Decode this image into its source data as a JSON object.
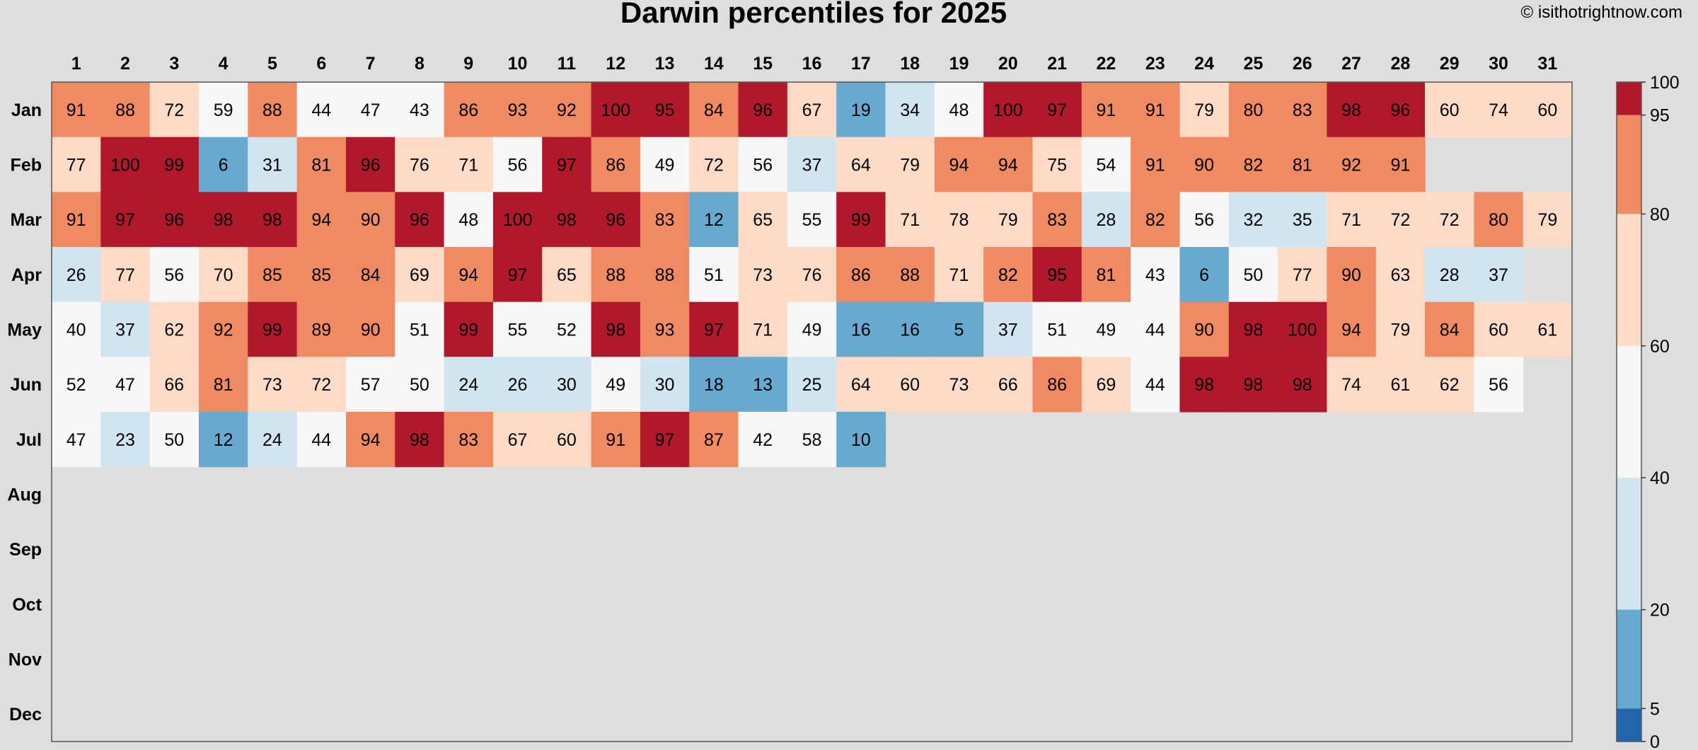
{
  "chart_data": {
    "type": "heatmap",
    "title": "Darwin percentiles for 2025",
    "watermark": "© isithotrightnow.com",
    "x": [
      "1",
      "2",
      "3",
      "4",
      "5",
      "6",
      "7",
      "8",
      "9",
      "10",
      "11",
      "12",
      "13",
      "14",
      "15",
      "16",
      "17",
      "18",
      "19",
      "20",
      "21",
      "22",
      "23",
      "24",
      "25",
      "26",
      "27",
      "28",
      "29",
      "30",
      "31"
    ],
    "y": [
      "Jan",
      "Feb",
      "Mar",
      "Apr",
      "May",
      "Jun",
      "Jul",
      "Aug",
      "Sep",
      "Oct",
      "Nov",
      "Dec"
    ],
    "values": [
      [
        91,
        88,
        72,
        59,
        88,
        44,
        47,
        43,
        86,
        93,
        92,
        100,
        95,
        84,
        96,
        67,
        19,
        34,
        48,
        100,
        97,
        91,
        91,
        79,
        80,
        83,
        98,
        96,
        60,
        74,
        60
      ],
      [
        77,
        100,
        99,
        6,
        31,
        81,
        96,
        76,
        71,
        56,
        97,
        86,
        49,
        72,
        56,
        37,
        64,
        79,
        94,
        94,
        75,
        54,
        91,
        90,
        82,
        81,
        92,
        91
      ],
      [
        91,
        97,
        96,
        98,
        98,
        94,
        90,
        96,
        48,
        100,
        98,
        96,
        83,
        12,
        65,
        55,
        99,
        71,
        78,
        79,
        83,
        28,
        82,
        56,
        32,
        35,
        71,
        72,
        72,
        80,
        79
      ],
      [
        26,
        77,
        56,
        70,
        85,
        85,
        84,
        69,
        94,
        97,
        65,
        88,
        88,
        51,
        73,
        76,
        86,
        88,
        71,
        82,
        95,
        81,
        43,
        6,
        50,
        77,
        90,
        63,
        28,
        37
      ],
      [
        40,
        37,
        62,
        92,
        99,
        89,
        90,
        51,
        99,
        55,
        52,
        98,
        93,
        97,
        71,
        49,
        16,
        16,
        5,
        37,
        51,
        49,
        44,
        90,
        98,
        100,
        94,
        79,
        84,
        60,
        61
      ],
      [
        52,
        47,
        66,
        81,
        73,
        72,
        57,
        50,
        24,
        26,
        30,
        49,
        30,
        18,
        13,
        25,
        64,
        60,
        73,
        66,
        86,
        69,
        44,
        98,
        98,
        98,
        74,
        61,
        62,
        56
      ],
      [
        47,
        23,
        50,
        12,
        24,
        44,
        94,
        98,
        83,
        67,
        60,
        91,
        97,
        87,
        42,
        58,
        10
      ],
      [],
      [],
      [],
      [],
      []
    ],
    "colorbar": {
      "ticks": [
        "0",
        "5",
        "20",
        "40",
        "60",
        "80",
        "95",
        "100"
      ],
      "bins": [
        {
          "from": 0,
          "to": 5,
          "color": "#2166ac"
        },
        {
          "from": 5,
          "to": 20,
          "color": "#67a9cf"
        },
        {
          "from": 20,
          "to": 40,
          "color": "#d1e5f0"
        },
        {
          "from": 40,
          "to": 60,
          "color": "#f7f7f7"
        },
        {
          "from": 60,
          "to": 80,
          "color": "#fddbc7"
        },
        {
          "from": 80,
          "to": 95,
          "color": "#ef8a62"
        },
        {
          "from": 95,
          "to": 100,
          "color": "#b2182b"
        }
      ]
    }
  }
}
